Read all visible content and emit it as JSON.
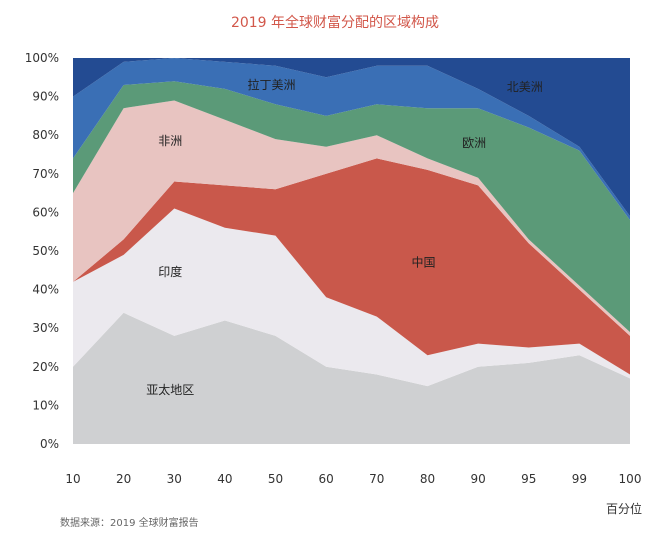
{
  "chart_data": {
    "type": "area",
    "stacked": true,
    "title": "2019 年全球财富分配的区域构成",
    "xlabel": "百分位",
    "ylabel": "",
    "x": [
      10,
      20,
      30,
      40,
      50,
      60,
      70,
      80,
      90,
      95,
      99,
      100
    ],
    "ylim": [
      0,
      100
    ],
    "yticks": [
      "0%",
      "10%",
      "20%",
      "30%",
      "40%",
      "50%",
      "60%",
      "70%",
      "80%",
      "90%",
      "100%"
    ],
    "series": [
      {
        "name": "亚太地区",
        "color": "#cfd0d2",
        "values": [
          20,
          34,
          28,
          32,
          28,
          20,
          18,
          15,
          20,
          21,
          23,
          17
        ]
      },
      {
        "name": "印度",
        "color": "#ebe9ee",
        "values": [
          22,
          15,
          33,
          24,
          26,
          18,
          15,
          8,
          6,
          4,
          3,
          1
        ]
      },
      {
        "name": "中国",
        "color": "#c9584b",
        "values": [
          0,
          4,
          7,
          11,
          12,
          32,
          41,
          48,
          41,
          27,
          14,
          10
        ]
      },
      {
        "name": "非洲",
        "color": "#e8c4c1",
        "values": [
          23,
          34,
          21,
          17,
          13,
          7,
          6,
          3,
          2,
          1,
          1,
          1
        ]
      },
      {
        "name": "欧洲",
        "color": "#5b9a78",
        "values": [
          9,
          6,
          5,
          8,
          9,
          8,
          8,
          13,
          18,
          29,
          35,
          29
        ]
      },
      {
        "name": "拉丁美洲",
        "color": "#3a6fb5",
        "values": [
          16,
          6,
          6,
          7,
          10,
          10,
          10,
          11,
          5,
          3,
          1,
          1
        ]
      },
      {
        "name": "北美洲",
        "color": "#234b92",
        "values": [
          10,
          1,
          0,
          1,
          2,
          5,
          2,
          2,
          8,
          15,
          23,
          41
        ]
      }
    ]
  },
  "footer": {
    "source": "数据来源：2019 全球财富报告"
  }
}
